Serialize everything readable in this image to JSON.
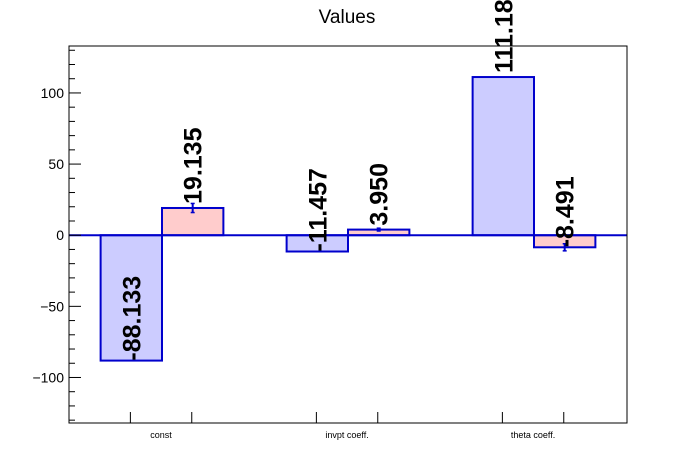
{
  "chart_data": {
    "type": "bar",
    "title": "Values",
    "categories": [
      "const",
      "invpt coeff.",
      "theta coeff."
    ],
    "series": [
      {
        "values": [
          -88.133,
          -11.457,
          111.18
        ],
        "errors": [
          0,
          0,
          0
        ],
        "labels": [
          "-88.133",
          "-11.457",
          "111.18"
        ],
        "fill": "#ccccff",
        "stroke": "#0000cc"
      },
      {
        "values": [
          19.135,
          3.95,
          -8.491
        ],
        "errors": [
          3.2,
          1.0,
          2.5
        ],
        "labels": [
          "19.135",
          "3.950",
          "-8.491"
        ],
        "fill": "#ffcccc",
        "stroke": "#0000cc"
      }
    ],
    "xlabel": "",
    "ylabel": "",
    "ylim": [
      -132,
      133
    ],
    "yticks": [
      -100,
      -50,
      0,
      50,
      100
    ],
    "ytick_labels": [
      "−100",
      "−50",
      "0",
      "50",
      "100"
    ],
    "grid": false,
    "zero_line_color": "#0000cc"
  }
}
